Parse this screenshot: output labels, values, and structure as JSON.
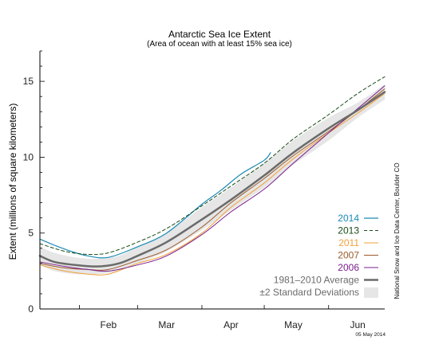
{
  "chart_data": {
    "type": "line",
    "title": "Antarctic Sea Ice Extent",
    "subtitle": "(Area of ocean with at least 15% sea ice)",
    "ylabel": "Extent (millions of square kilometers)",
    "xlabel": "",
    "ylim": [
      0,
      17
    ],
    "xlim": [
      "2014-01-13",
      "2014-06-28"
    ],
    "yticks": [
      0,
      5,
      10,
      15
    ],
    "xticks": [
      {
        "label": "Feb",
        "x": "2014-02-15"
      },
      {
        "label": "Mar",
        "x": "2014-03-15"
      },
      {
        "label": "Apr",
        "x": "2014-04-15"
      },
      {
        "label": "May",
        "x": "2014-05-15"
      },
      {
        "label": "Jun",
        "x": "2014-06-15"
      }
    ],
    "grid": false,
    "legend_position": "bottom-right",
    "credit": "National Snow and Ice Data Center, Boulder CO",
    "date_stamp": "05 May 2014",
    "band": {
      "name": "±2 Standard Deviations",
      "color": "#e6e6e6",
      "x": [
        "2014-01-13",
        "2014-01-20",
        "2014-01-30",
        "2014-02-10",
        "2014-02-20",
        "2014-03-01",
        "2014-03-15",
        "2014-04-01",
        "2014-04-15",
        "2014-05-01",
        "2014-05-15",
        "2014-06-01",
        "2014-06-15",
        "2014-06-28"
      ],
      "upper": [
        4.1,
        3.7,
        3.4,
        3.3,
        3.5,
        4.1,
        5.0,
        6.7,
        8.0,
        9.6,
        11.1,
        12.6,
        13.6,
        14.8
      ],
      "lower": [
        2.9,
        2.5,
        2.3,
        2.3,
        2.5,
        3.0,
        3.8,
        5.2,
        6.5,
        8.0,
        9.5,
        11.1,
        12.6,
        13.8
      ]
    },
    "series": [
      {
        "name": "2014",
        "color": "#1a8ab5",
        "dash": false,
        "width": 1.2,
        "x": [
          "2014-01-13",
          "2014-01-20",
          "2014-01-28",
          "2014-02-05",
          "2014-02-15",
          "2014-03-01",
          "2014-03-15",
          "2014-04-01",
          "2014-04-10",
          "2014-04-20",
          "2014-05-01",
          "2014-05-04"
        ],
        "y": [
          4.6,
          4.2,
          3.8,
          3.5,
          3.4,
          4.1,
          5.0,
          6.9,
          7.8,
          8.9,
          9.8,
          10.3
        ]
      },
      {
        "name": "2013",
        "color": "#1a4d1a",
        "dash": true,
        "width": 1.0,
        "x": [
          "2014-01-13",
          "2014-01-25",
          "2014-02-05",
          "2014-02-15",
          "2014-03-01",
          "2014-03-15",
          "2014-04-01",
          "2014-04-15",
          "2014-05-01",
          "2014-05-15",
          "2014-06-01",
          "2014-06-15",
          "2014-06-28"
        ],
        "y": [
          4.3,
          3.8,
          3.6,
          3.7,
          4.4,
          5.3,
          6.8,
          8.1,
          9.6,
          11.2,
          12.8,
          14.2,
          15.3
        ]
      },
      {
        "name": "2011",
        "color": "#f2a03a",
        "dash": false,
        "width": 1.0,
        "x": [
          "2014-01-13",
          "2014-01-25",
          "2014-02-05",
          "2014-02-15",
          "2014-03-01",
          "2014-03-15",
          "2014-04-01",
          "2014-04-15",
          "2014-05-01",
          "2014-05-15",
          "2014-06-01",
          "2014-06-15",
          "2014-06-28"
        ],
        "y": [
          2.9,
          2.5,
          2.3,
          2.3,
          3.0,
          3.6,
          5.0,
          6.7,
          8.3,
          9.9,
          11.6,
          12.9,
          14.2
        ]
      },
      {
        "name": "2007",
        "color": "#9c5a2c",
        "dash": false,
        "width": 1.0,
        "x": [
          "2014-01-13",
          "2014-01-25",
          "2014-02-05",
          "2014-02-15",
          "2014-03-01",
          "2014-03-15",
          "2014-04-01",
          "2014-04-15",
          "2014-05-01",
          "2014-05-15",
          "2014-06-01",
          "2014-06-15",
          "2014-06-28"
        ],
        "y": [
          3.0,
          2.7,
          2.6,
          2.6,
          3.2,
          3.9,
          5.4,
          7.0,
          8.6,
          10.1,
          11.7,
          13.1,
          14.5
        ]
      },
      {
        "name": "2006",
        "color": "#7a1d8c",
        "dash": false,
        "width": 1.0,
        "x": [
          "2014-01-13",
          "2014-01-25",
          "2014-02-05",
          "2014-02-15",
          "2014-03-01",
          "2014-03-15",
          "2014-04-01",
          "2014-04-15",
          "2014-05-01",
          "2014-05-15",
          "2014-06-01",
          "2014-06-15",
          "2014-06-28"
        ],
        "y": [
          3.1,
          2.8,
          2.6,
          2.5,
          2.9,
          3.5,
          4.9,
          6.4,
          7.9,
          9.6,
          11.6,
          13.2,
          14.7
        ]
      },
      {
        "name": "1981–2010 Average",
        "color": "#6b6b6b",
        "dash": false,
        "width": 2.5,
        "x": [
          "2014-01-13",
          "2014-01-20",
          "2014-01-30",
          "2014-02-10",
          "2014-02-20",
          "2014-03-01",
          "2014-03-15",
          "2014-04-01",
          "2014-04-15",
          "2014-05-01",
          "2014-05-15",
          "2014-06-01",
          "2014-06-15",
          "2014-06-28"
        ],
        "y": [
          3.5,
          3.1,
          2.9,
          2.8,
          3.0,
          3.5,
          4.4,
          5.9,
          7.2,
          8.8,
          10.3,
          11.9,
          13.1,
          14.3
        ]
      }
    ]
  }
}
